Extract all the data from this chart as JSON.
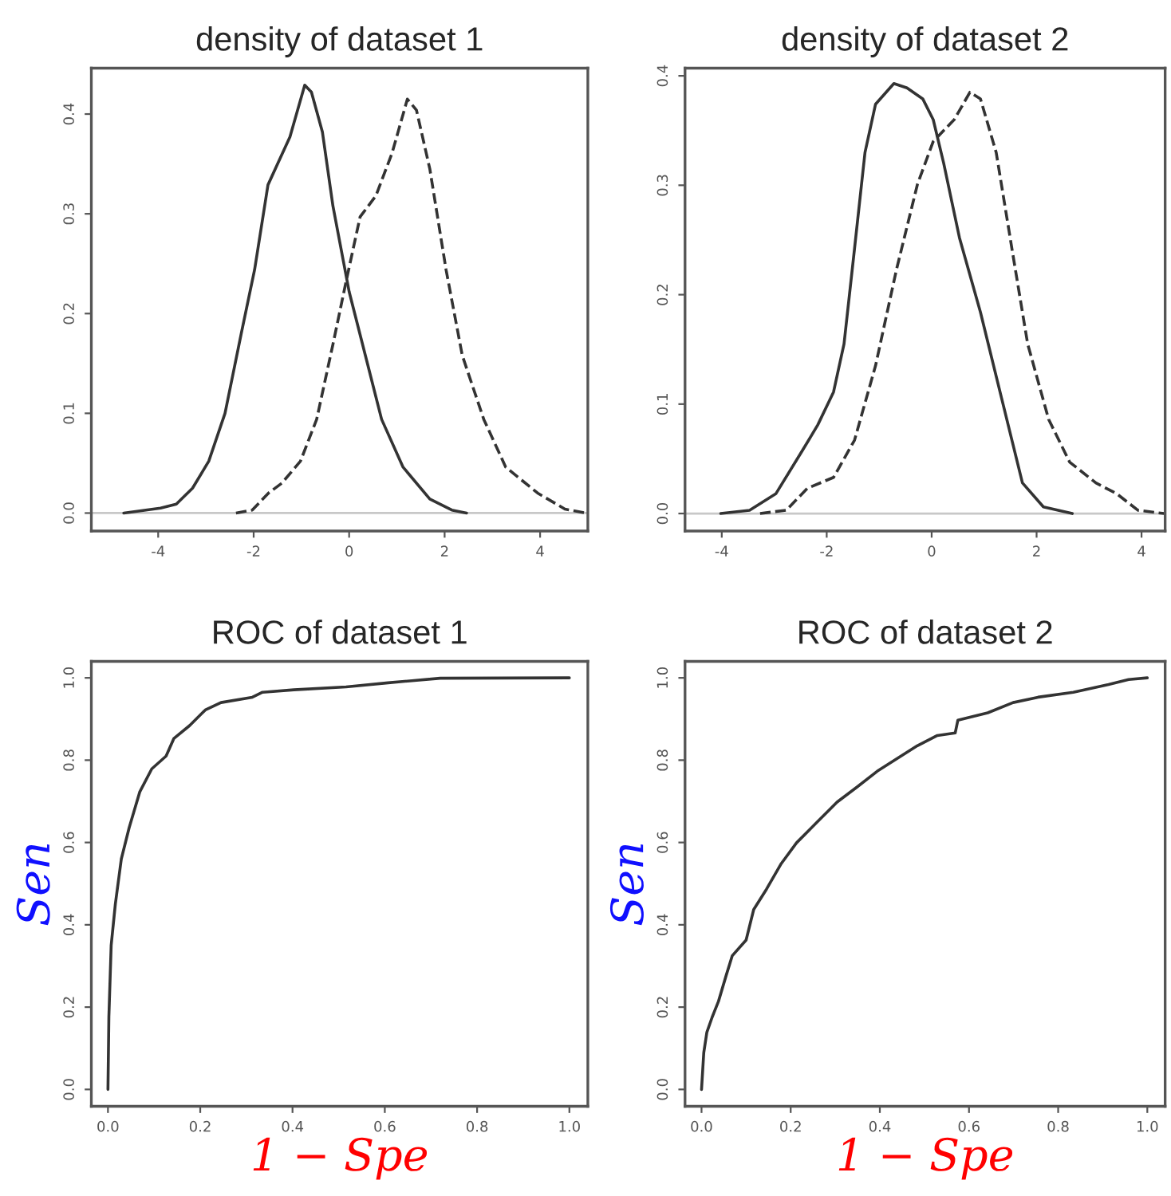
{
  "chart_data": [
    {
      "type": "line",
      "title": "density of dataset 1",
      "xlim": [
        -5.4,
        5.0
      ],
      "ylim": [
        -0.018,
        0.446
      ],
      "xticks": [
        -4,
        -2,
        0,
        2,
        4
      ],
      "yticks": [
        {
          "value": 0,
          "label": "0.0"
        },
        {
          "value": 0.1,
          "label": "0.1"
        },
        {
          "value": 0.2,
          "label": "0.2"
        },
        {
          "value": 0.3,
          "label": "0.3"
        },
        {
          "value": 0.4,
          "label": "0.4"
        }
      ],
      "ref_lines": [
        {
          "axis": "y",
          "value": 0,
          "color": "#c8c8c8"
        }
      ],
      "series": [
        {
          "color": "#333333",
          "line_style": "solid",
          "x": [
            -4.72,
            -3.95,
            -3.62,
            -3.28,
            -2.94,
            -2.6,
            -2.26,
            -1.98,
            -1.7,
            -1.47,
            -1.24,
            -0.93,
            -0.79,
            -0.56,
            -0.34,
            0,
            0.34,
            0.68,
            1.13,
            1.69,
            2.15,
            2.46
          ],
          "values": [
            0,
            0.005,
            0.009,
            0.025,
            0.052,
            0.1,
            0.18,
            0.244,
            0.329,
            0.353,
            0.377,
            0.429,
            0.422,
            0.382,
            0.308,
            0.222,
            0.158,
            0.094,
            0.046,
            0.014,
            0.003,
            0
          ]
        },
        {
          "color": "#333333",
          "line_style": "dashed",
          "x": [
            -2.37,
            -2.03,
            -1.69,
            -1.41,
            -1.02,
            -0.68,
            -0.34,
            -0.06,
            0.23,
            0.56,
            0.9,
            1.22,
            1.41,
            1.69,
            2.03,
            2.37,
            2.82,
            3.28,
            3.95,
            4.52,
            4.97
          ],
          "values": [
            0,
            0.003,
            0.02,
            0.03,
            0.052,
            0.094,
            0.169,
            0.233,
            0.297,
            0.318,
            0.361,
            0.415,
            0.404,
            0.345,
            0.244,
            0.158,
            0.094,
            0.046,
            0.02,
            0.004,
            0
          ]
        }
      ]
    },
    {
      "type": "line",
      "title": "density of dataset 2",
      "xlim": [
        -4.7,
        4.45
      ],
      "ylim": [
        -0.016,
        0.407
      ],
      "xticks": [
        -4,
        -2,
        0,
        2,
        4
      ],
      "yticks": [
        {
          "value": 0,
          "label": "0.0"
        },
        {
          "value": 0.1,
          "label": "0.1"
        },
        {
          "value": 0.2,
          "label": "0.2"
        },
        {
          "value": 0.3,
          "label": "0.3"
        },
        {
          "value": 0.4,
          "label": "0.4"
        }
      ],
      "ref_lines": [
        {
          "axis": "y",
          "value": 0,
          "color": "#c8c8c8"
        }
      ],
      "series": [
        {
          "color": "#333333",
          "line_style": "solid",
          "x": [
            -4.02,
            -3.47,
            -2.97,
            -2.47,
            -2.17,
            -1.87,
            -1.67,
            -1.47,
            -1.27,
            -1.07,
            -0.72,
            -0.47,
            -0.17,
            0.03,
            0.23,
            0.53,
            0.93,
            1.33,
            1.73,
            2.13,
            2.68
          ],
          "values": [
            0,
            0.003,
            0.018,
            0.057,
            0.081,
            0.111,
            0.155,
            0.242,
            0.33,
            0.374,
            0.393,
            0.389,
            0.379,
            0.36,
            0.32,
            0.252,
            0.184,
            0.106,
            0.028,
            0.006,
            0
          ]
        },
        {
          "color": "#333333",
          "line_style": "dashed",
          "x": [
            -3.27,
            -2.77,
            -2.37,
            -1.87,
            -1.47,
            -1.07,
            -0.67,
            -0.27,
            0.03,
            0.43,
            0.73,
            0.93,
            1.23,
            1.53,
            1.83,
            2.23,
            2.63,
            3.13,
            3.53,
            3.93,
            4.43
          ],
          "values": [
            0,
            0.003,
            0.023,
            0.033,
            0.067,
            0.135,
            0.223,
            0.301,
            0.34,
            0.36,
            0.385,
            0.379,
            0.33,
            0.242,
            0.155,
            0.086,
            0.047,
            0.028,
            0.018,
            0.003,
            0
          ]
        }
      ]
    },
    {
      "type": "line",
      "title": "ROC of dataset 1",
      "xlabel": "1 − Spe",
      "ylabel": "Sen",
      "xlim": [
        -0.036,
        1.04
      ],
      "ylim": [
        -0.041,
        1.04
      ],
      "xticks": [
        {
          "value": 0,
          "label": "0.0"
        },
        {
          "value": 0.2,
          "label": "0.2"
        },
        {
          "value": 0.4,
          "label": "0.4"
        },
        {
          "value": 0.6,
          "label": "0.6"
        },
        {
          "value": 0.8,
          "label": "0.8"
        },
        {
          "value": 1,
          "label": "1.0"
        }
      ],
      "yticks": [
        {
          "value": 0,
          "label": "0.0"
        },
        {
          "value": 0.2,
          "label": "0.2"
        },
        {
          "value": 0.4,
          "label": "0.4"
        },
        {
          "value": 0.6,
          "label": "0.6"
        },
        {
          "value": 0.8,
          "label": "0.8"
        },
        {
          "value": 1,
          "label": "1.0"
        }
      ],
      "series": [
        {
          "color": "#333333",
          "x": [
            0,
            0.002,
            0.007,
            0.016,
            0.029,
            0.046,
            0.069,
            0.095,
            0.126,
            0.143,
            0.177,
            0.211,
            0.245,
            0.313,
            0.335,
            0.403,
            0.516,
            0.607,
            0.72,
            1
          ],
          "values": [
            0,
            0.176,
            0.35,
            0.45,
            0.56,
            0.636,
            0.723,
            0.779,
            0.81,
            0.853,
            0.884,
            0.922,
            0.94,
            0.953,
            0.965,
            0.971,
            0.978,
            0.988,
            0.999,
            1
          ]
        }
      ]
    },
    {
      "type": "line",
      "title": "ROC of dataset 2",
      "xlabel": "1 − Spe",
      "ylabel": "Sen",
      "xlim": [
        -0.037,
        1.04
      ],
      "ylim": [
        -0.041,
        1.04
      ],
      "xticks": [
        {
          "value": 0,
          "label": "0.0"
        },
        {
          "value": 0.2,
          "label": "0.2"
        },
        {
          "value": 0.4,
          "label": "0.4"
        },
        {
          "value": 0.6,
          "label": "0.6"
        },
        {
          "value": 0.8,
          "label": "0.8"
        },
        {
          "value": 1,
          "label": "1.0"
        }
      ],
      "yticks": [
        {
          "value": 0,
          "label": "0.0"
        },
        {
          "value": 0.2,
          "label": "0.2"
        },
        {
          "value": 0.4,
          "label": "0.4"
        },
        {
          "value": 0.6,
          "label": "0.6"
        },
        {
          "value": 0.8,
          "label": "0.8"
        },
        {
          "value": 1,
          "label": "1.0"
        }
      ],
      "series": [
        {
          "color": "#333333",
          "x": [
            0,
            0.005,
            0.012,
            0.024,
            0.038,
            0.055,
            0.069,
            0.1,
            0.117,
            0.146,
            0.179,
            0.213,
            0.258,
            0.304,
            0.349,
            0.394,
            0.439,
            0.484,
            0.529,
            0.569,
            0.575,
            0.642,
            0.699,
            0.755,
            0.834,
            0.913,
            0.958,
            1
          ],
          "values": [
            0,
            0.089,
            0.139,
            0.176,
            0.214,
            0.276,
            0.325,
            0.363,
            0.437,
            0.487,
            0.549,
            0.599,
            0.648,
            0.698,
            0.735,
            0.773,
            0.804,
            0.835,
            0.86,
            0.866,
            0.897,
            0.915,
            0.94,
            0.953,
            0.965,
            0.984,
            0.996,
            1
          ]
        }
      ]
    }
  ]
}
